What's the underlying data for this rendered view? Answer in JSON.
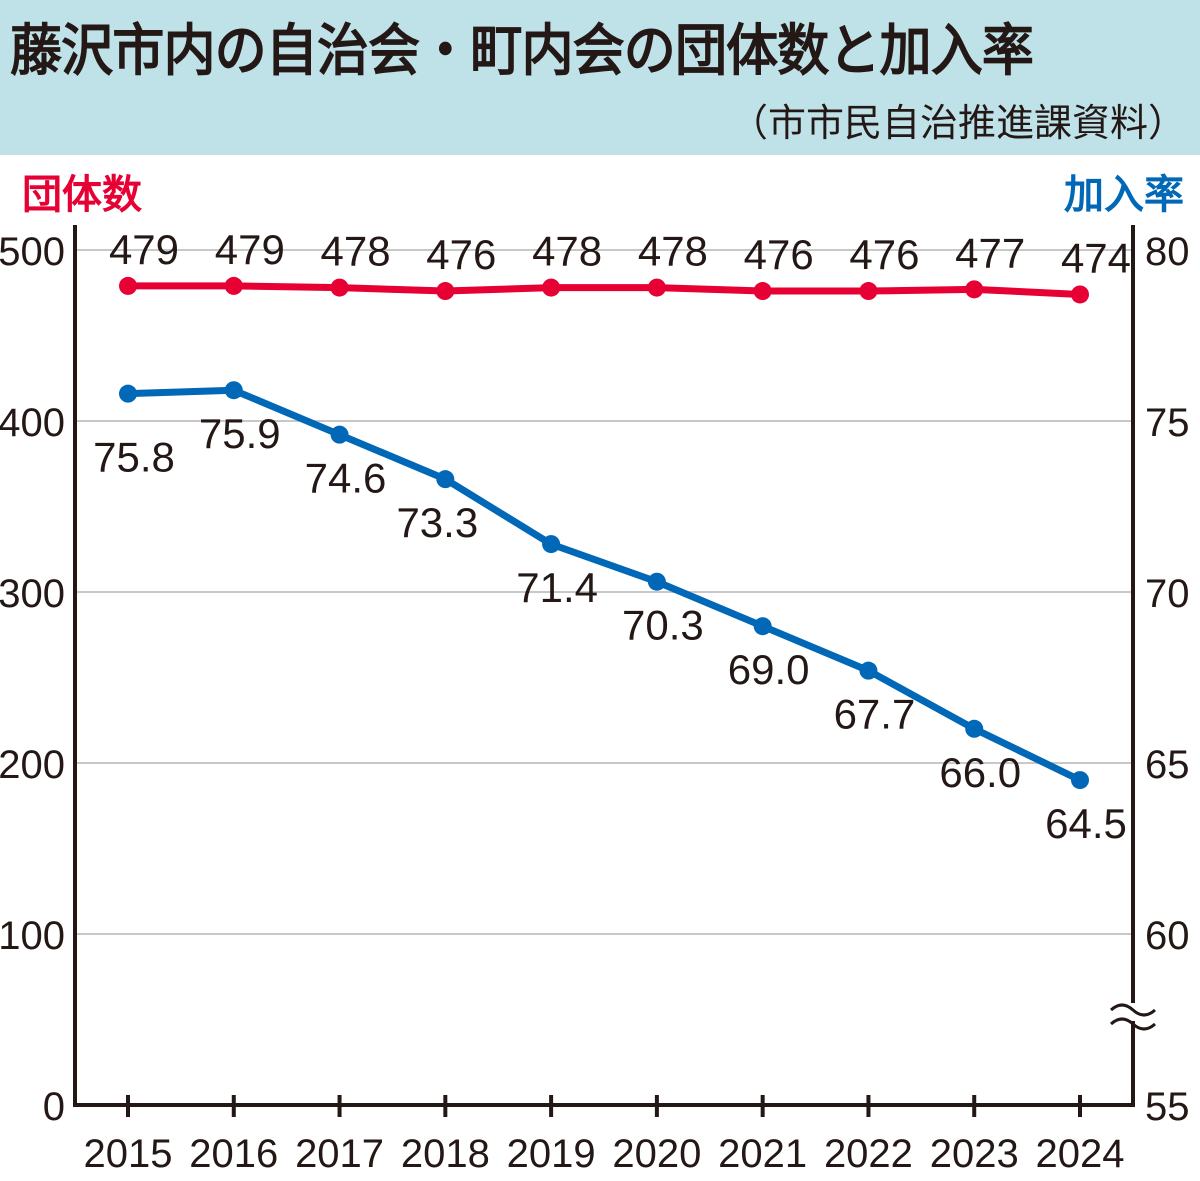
{
  "chart_data": {
    "type": "line",
    "title": "藤沢市内の自治会・町内会の団体数と加入率",
    "subtitle": "（市市民自治推進課資料）",
    "left_axis_label": "団体数",
    "right_axis_label": "加入率",
    "categories": [
      "2015",
      "2016",
      "2017",
      "2018",
      "2019",
      "2020",
      "2021",
      "2022",
      "2023",
      "2024"
    ],
    "left_ylim": [
      0,
      500
    ],
    "left_ticks": [
      "0",
      "100",
      "200",
      "300",
      "400",
      "500"
    ],
    "right_ylim": [
      55,
      80
    ],
    "right_ticks": [
      "55",
      "60",
      "65",
      "70",
      "75",
      "80"
    ],
    "right_axis_break": true,
    "grid": true,
    "series": [
      {
        "name": "団体数",
        "axis": "left",
        "color": "#e60033",
        "values": [
          479,
          479,
          478,
          476,
          478,
          478,
          476,
          476,
          477,
          474
        ],
        "labels": [
          "479",
          "479",
          "478",
          "476",
          "478",
          "478",
          "476",
          "476",
          "477",
          "474"
        ]
      },
      {
        "name": "加入率",
        "axis": "right",
        "color": "#0068b7",
        "values": [
          75.8,
          75.9,
          74.6,
          73.3,
          71.4,
          70.3,
          69.0,
          67.7,
          66.0,
          64.5
        ],
        "labels": [
          "75.8",
          "75.9",
          "74.6",
          "73.3",
          "71.4",
          "70.3",
          "69.0",
          "67.7",
          "66.0",
          "64.5"
        ]
      }
    ]
  }
}
